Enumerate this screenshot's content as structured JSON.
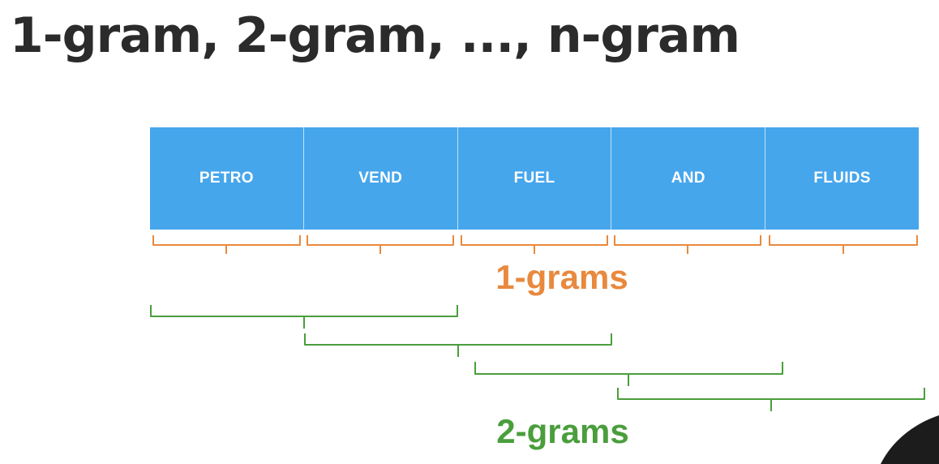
{
  "title": "1-gram, 2-gram, ..., n-gram",
  "tokens": [
    "PETRO",
    "VEND",
    "FUEL",
    "AND",
    "FLUIDS"
  ],
  "labels": {
    "unigrams": "1-grams",
    "bigrams": "2-grams"
  },
  "colors": {
    "title": "#2b2b2b",
    "token_fill": "#46a6ec",
    "token_text": "#ffffff",
    "unigram_bracket": "#e8893e",
    "bigram_bracket": "#4a9e3c"
  }
}
